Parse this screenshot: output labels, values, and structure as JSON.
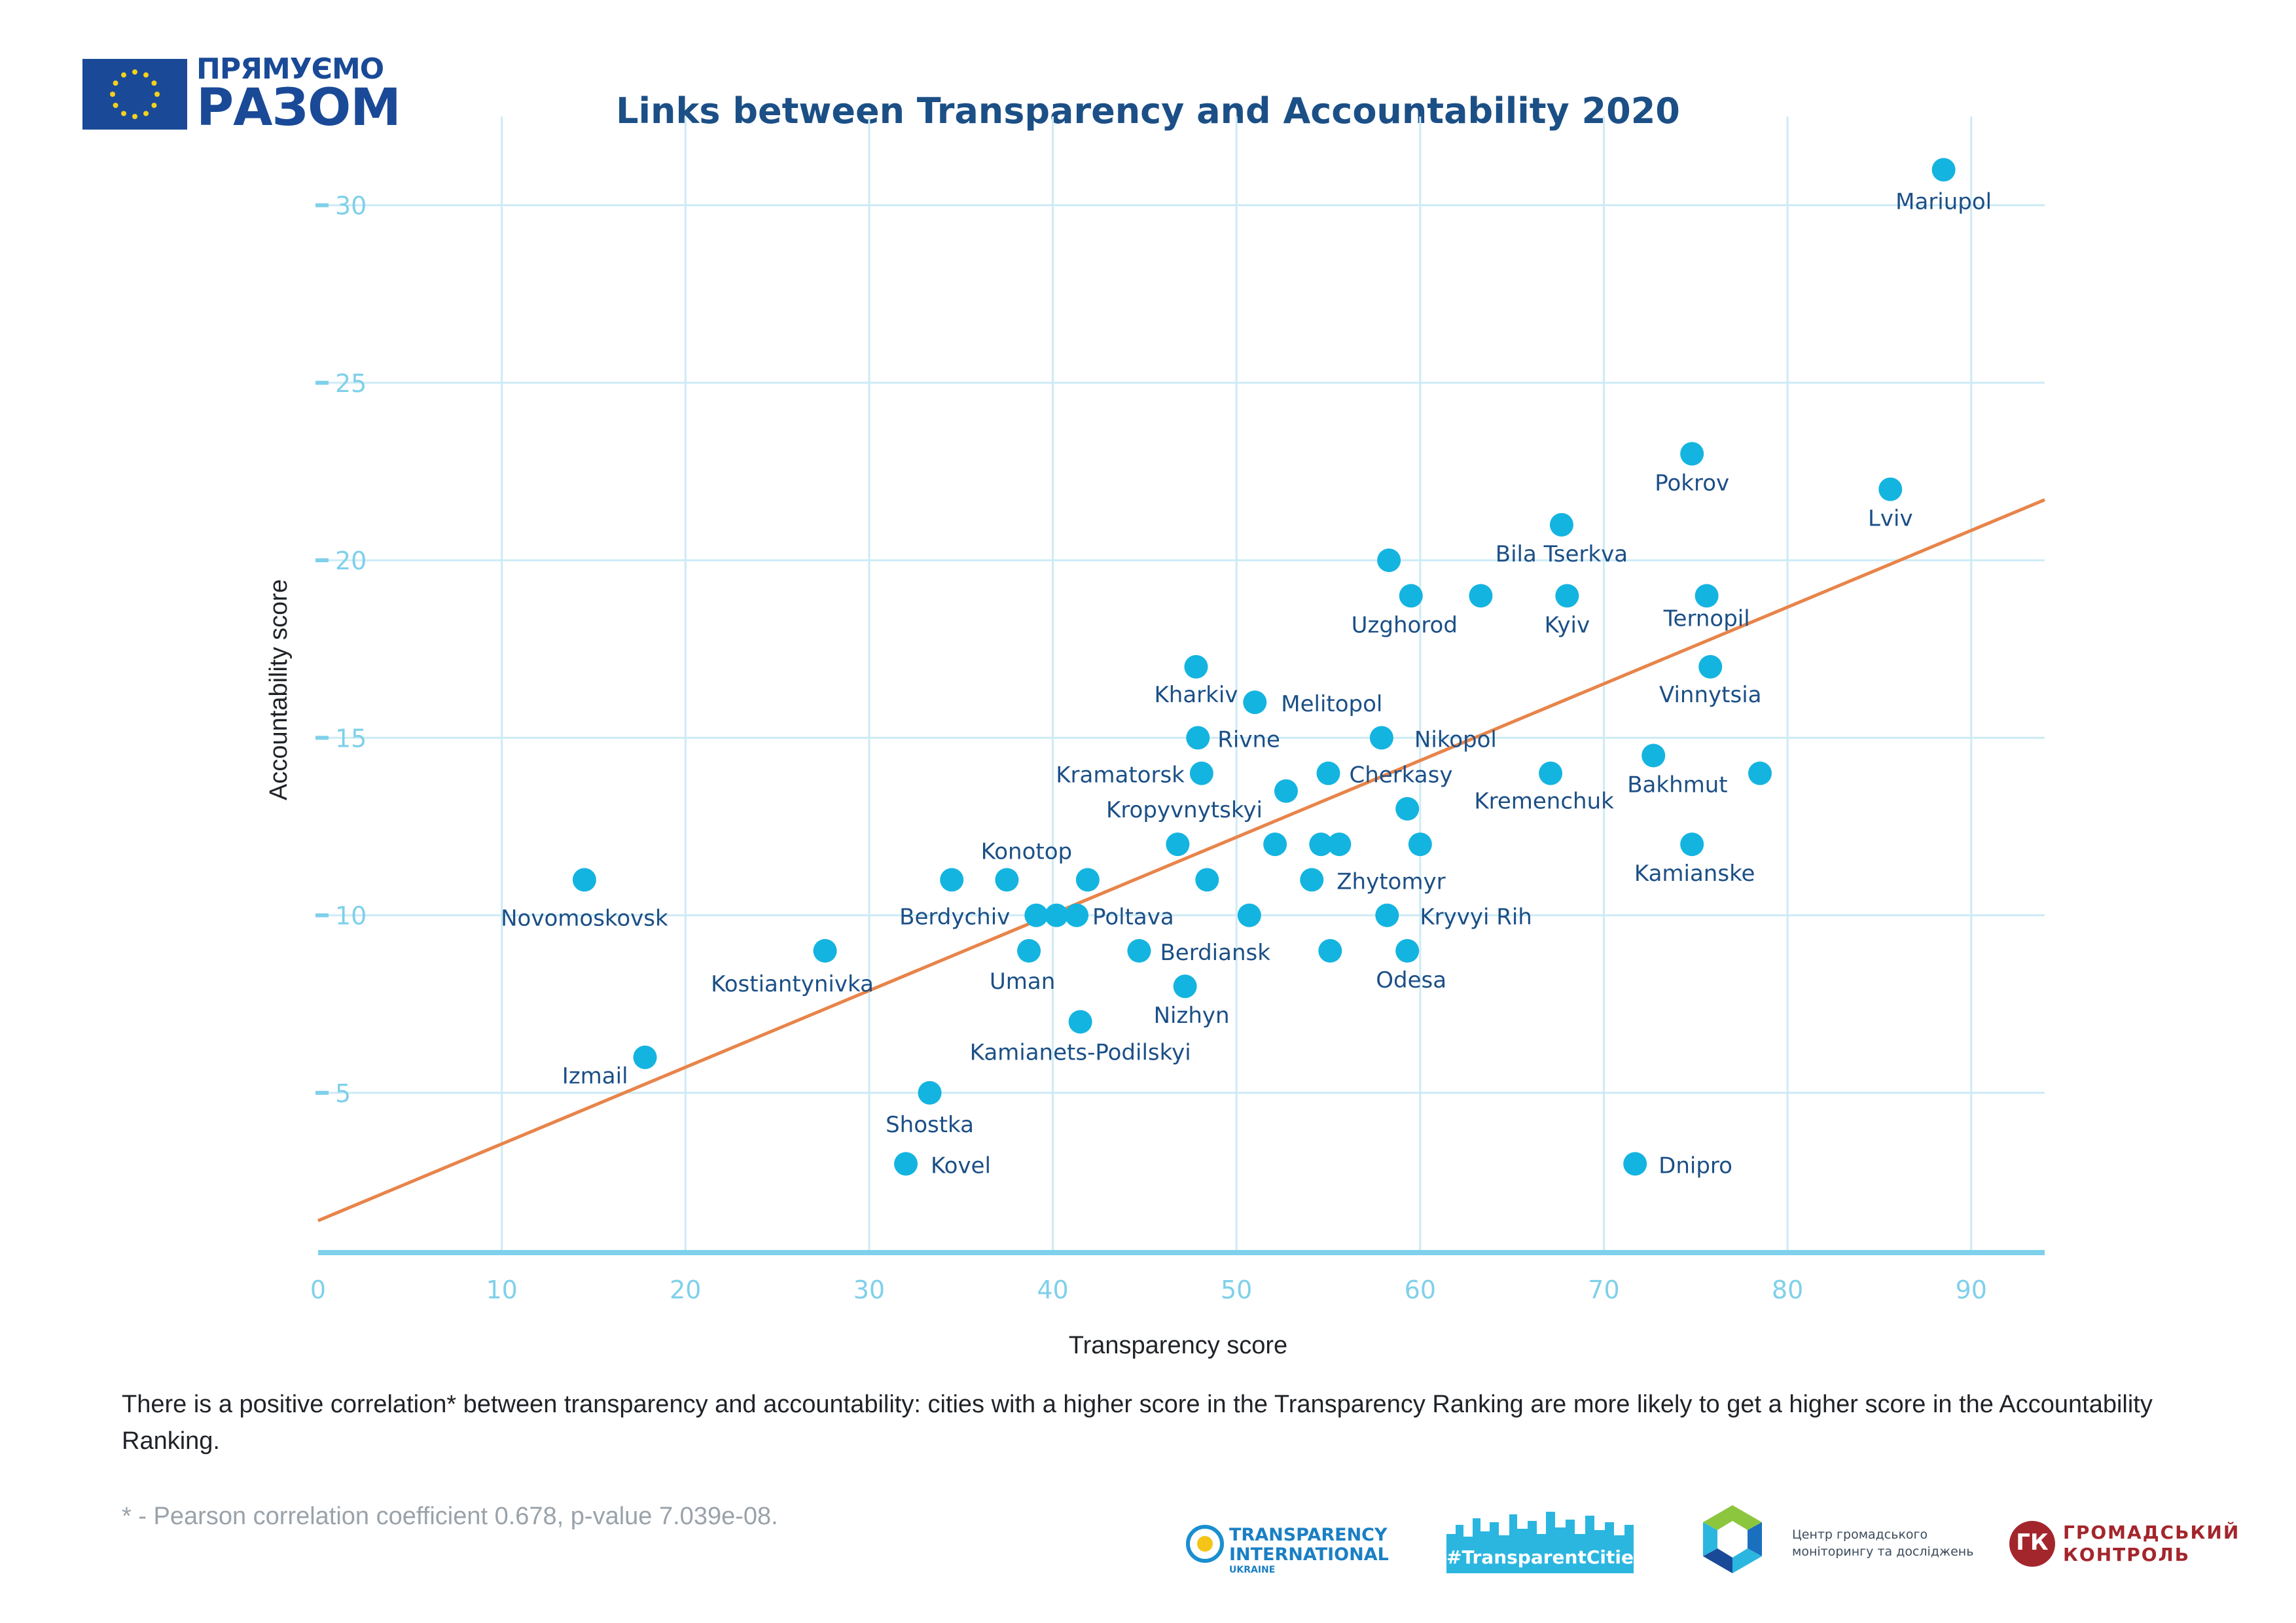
{
  "header": {
    "brand_line1": "ПРЯМУЄМО",
    "brand_line2": "РАЗОМ"
  },
  "chart_data": {
    "type": "scatter",
    "title": "Links between Transparency and Accountability 2020",
    "xlabel": "Transparency score",
    "ylabel": "Accountability score",
    "xlim": [
      0,
      94
    ],
    "ylim": [
      0.5,
      32.5
    ],
    "xticks": [
      0,
      10,
      20,
      30,
      40,
      50,
      60,
      70,
      80,
      90
    ],
    "yticks": [
      5,
      10,
      15,
      20,
      25,
      30
    ],
    "grid": true,
    "point_color": "#14b4e0",
    "trend_color": "#e8844a",
    "axis_color": "#7fd0ea",
    "label_color": "#1b4f86",
    "trendline": {
      "intercept": 1.4,
      "slope": 0.216
    },
    "points": [
      {
        "x": 88.5,
        "y": 31,
        "label": "Mariupol"
      },
      {
        "x": 74.8,
        "y": 23,
        "label": "Pokrov"
      },
      {
        "x": 85.6,
        "y": 22,
        "label": "Lviv"
      },
      {
        "x": 67.7,
        "y": 21,
        "label": "Bila Tserkva"
      },
      {
        "x": 58.3,
        "y": 20,
        "label": ""
      },
      {
        "x": 59.5,
        "y": 19,
        "label": "Uzghorod"
      },
      {
        "x": 63.3,
        "y": 19,
        "label": ""
      },
      {
        "x": 68.0,
        "y": 19,
        "label": "Kyiv"
      },
      {
        "x": 75.6,
        "y": 19,
        "label": "Ternopil"
      },
      {
        "x": 75.8,
        "y": 17,
        "label": "Vinnytsia"
      },
      {
        "x": 47.8,
        "y": 17,
        "label": "Kharkiv"
      },
      {
        "x": 51.0,
        "y": 16,
        "label": "Melitopol"
      },
      {
        "x": 47.9,
        "y": 15,
        "label": "Rivne"
      },
      {
        "x": 57.9,
        "y": 15,
        "label": "Nikopol"
      },
      {
        "x": 72.7,
        "y": 14.5,
        "label": "Bakhmut"
      },
      {
        "x": 48.1,
        "y": 14,
        "label": "Kramatorsk"
      },
      {
        "x": 55.0,
        "y": 14,
        "label": "Cherkasy"
      },
      {
        "x": 67.1,
        "y": 14,
        "label": "Kremenchuk"
      },
      {
        "x": 78.5,
        "y": 14,
        "label": ""
      },
      {
        "x": 52.7,
        "y": 13.5,
        "label": "Kropyvnytskyi"
      },
      {
        "x": 59.3,
        "y": 13,
        "label": ""
      },
      {
        "x": 46.8,
        "y": 12,
        "label": ""
      },
      {
        "x": 52.1,
        "y": 12,
        "label": ""
      },
      {
        "x": 54.6,
        "y": 12,
        "label": ""
      },
      {
        "x": 55.6,
        "y": 12,
        "label": ""
      },
      {
        "x": 60.0,
        "y": 12,
        "label": ""
      },
      {
        "x": 74.8,
        "y": 12,
        "label": "Kamianske"
      },
      {
        "x": 34.5,
        "y": 11,
        "label": ""
      },
      {
        "x": 37.5,
        "y": 11,
        "label": "Konotop"
      },
      {
        "x": 41.9,
        "y": 11,
        "label": ""
      },
      {
        "x": 48.4,
        "y": 11,
        "label": ""
      },
      {
        "x": 54.1,
        "y": 11,
        "label": "Zhytomyr"
      },
      {
        "x": 14.5,
        "y": 11,
        "label": "Novomoskovsk"
      },
      {
        "x": 39.1,
        "y": 10,
        "label": "Berdychiv"
      },
      {
        "x": 40.2,
        "y": 10,
        "label": ""
      },
      {
        "x": 41.3,
        "y": 10,
        "label": "Poltava"
      },
      {
        "x": 50.7,
        "y": 10,
        "label": ""
      },
      {
        "x": 58.2,
        "y": 10,
        "label": "Kryvyi Rih"
      },
      {
        "x": 27.6,
        "y": 9,
        "label": "Kostiantynivka"
      },
      {
        "x": 38.7,
        "y": 9,
        "label": "Uman"
      },
      {
        "x": 44.7,
        "y": 9,
        "label": "Berdiansk"
      },
      {
        "x": 55.1,
        "y": 9,
        "label": ""
      },
      {
        "x": 59.3,
        "y": 9,
        "label": "Odesa"
      },
      {
        "x": 47.2,
        "y": 8,
        "label": "Nizhyn"
      },
      {
        "x": 41.5,
        "y": 7,
        "label": "Kamianets-Podilskyi"
      },
      {
        "x": 17.8,
        "y": 6,
        "label": "Izmail"
      },
      {
        "x": 33.3,
        "y": 5,
        "label": "Shostka"
      },
      {
        "x": 32.0,
        "y": 3,
        "label": "Kovel"
      },
      {
        "x": 71.7,
        "y": 3,
        "label": "Dnipro"
      }
    ]
  },
  "note": {
    "text": "There is a positive correlation* between transparency and accountability: cities with a higher score in the Transparency Ranking are more likely to get a higher score in the Accountability Ranking.",
    "footnote": "* - Pearson correlation coefficient 0.678, p-value 7.039e-08."
  },
  "partners": {
    "ti_line1": "TRANSPARENCY",
    "ti_line2": "INTERNATIONAL",
    "ti_line3": "UKRAINE",
    "tc_label": "#TransparentCities",
    "cgm_line1": "Центр громадського",
    "cgm_line2": "моніторингу та досліджень",
    "gk_mark": "ГК",
    "gk_line1": "ГРОМАДСЬКИЙ",
    "gk_line2": "КОНТРОЛЬ"
  }
}
